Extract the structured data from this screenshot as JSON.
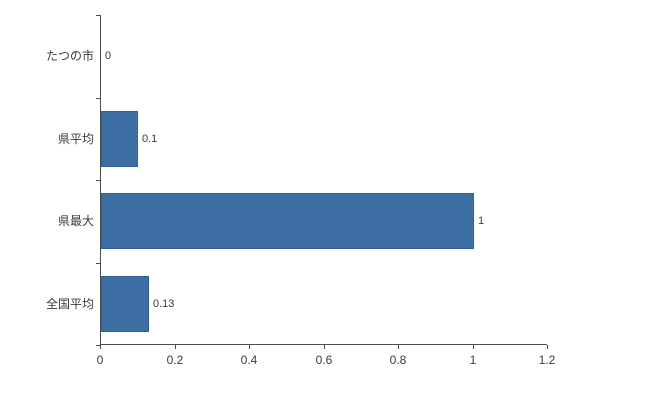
{
  "chart_data": {
    "type": "bar",
    "orientation": "horizontal",
    "title": "",
    "xlabel": "",
    "ylabel": "",
    "categories": [
      "たつの市",
      "県平均",
      "県最大",
      "全国平均"
    ],
    "values": [
      0,
      0.1,
      1,
      0.13
    ],
    "value_labels": [
      "0",
      "0.1",
      "1",
      "0.13"
    ],
    "x_ticks": [
      0,
      0.2,
      0.4,
      0.6,
      0.8,
      1,
      1.2
    ],
    "x_tick_labels": [
      "0",
      "0.2",
      "0.4",
      "0.6",
      "0.8",
      "1",
      "1.2"
    ],
    "xlim": [
      0,
      1.2
    ],
    "grid": false,
    "legend": "none",
    "bar_color": "#3d6fa5",
    "bar_border_color": "#33608f",
    "axis_color": "#4d4d4d",
    "text_color": "#3b3b3b",
    "background_color": "#ffffff"
  }
}
